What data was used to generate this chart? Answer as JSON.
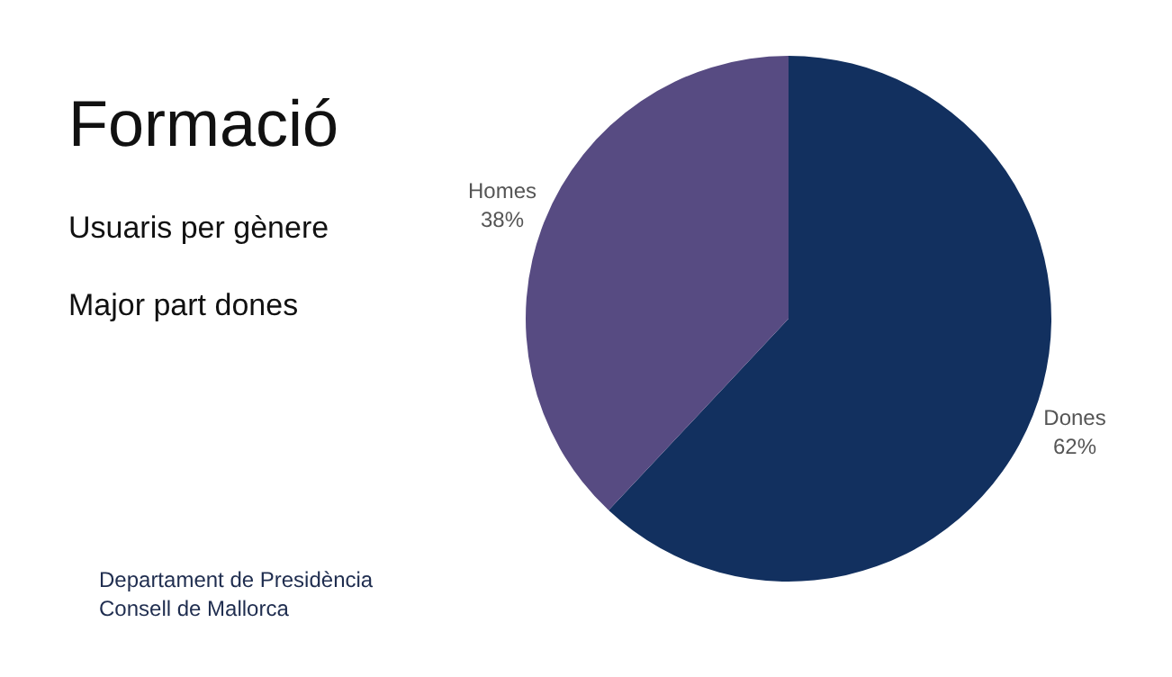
{
  "chart_data": {
    "type": "pie",
    "title": "Formació",
    "subtitle": "Usuaris per gènere",
    "annotations": [
      "Major part dones",
      "Departament de Presidència",
      "Consell de Mallorca"
    ],
    "categories": [
      "Dones",
      "Homes"
    ],
    "values": [
      62,
      38
    ],
    "value_labels": [
      "62%",
      "38%"
    ],
    "colors": [
      "#12305f",
      "#574b82"
    ]
  }
}
